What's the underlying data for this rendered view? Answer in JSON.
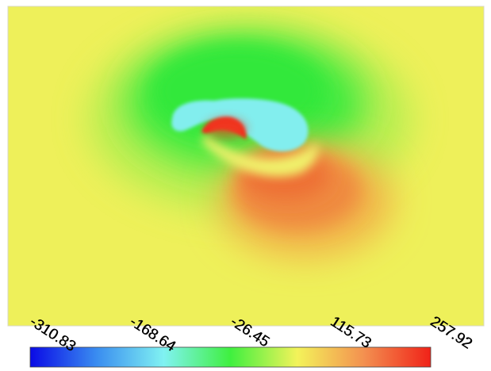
{
  "chart_data": {
    "type": "heatmap",
    "title": "",
    "xlabel": "",
    "ylabel": "",
    "colorbar": {
      "min": -310.83,
      "max": 257.92,
      "ticks": [
        "-310.83",
        "-168.64",
        "-26.45",
        "115.73",
        "257.92"
      ],
      "tick_values": [
        -310.83,
        -168.64,
        -26.45,
        115.73,
        257.92
      ],
      "colors": [
        "#0a0ae6",
        "#3a8df0",
        "#80f2f2",
        "#3ff03f",
        "#f3f35a",
        "#f39050",
        "#f02218"
      ]
    },
    "field_colors": {
      "background": "#eef05a",
      "low_lobe": "#85eeee",
      "high_core": "#f02a1a",
      "positive_lobe": "#ef8840",
      "negative_region": "#40ea40"
    }
  }
}
